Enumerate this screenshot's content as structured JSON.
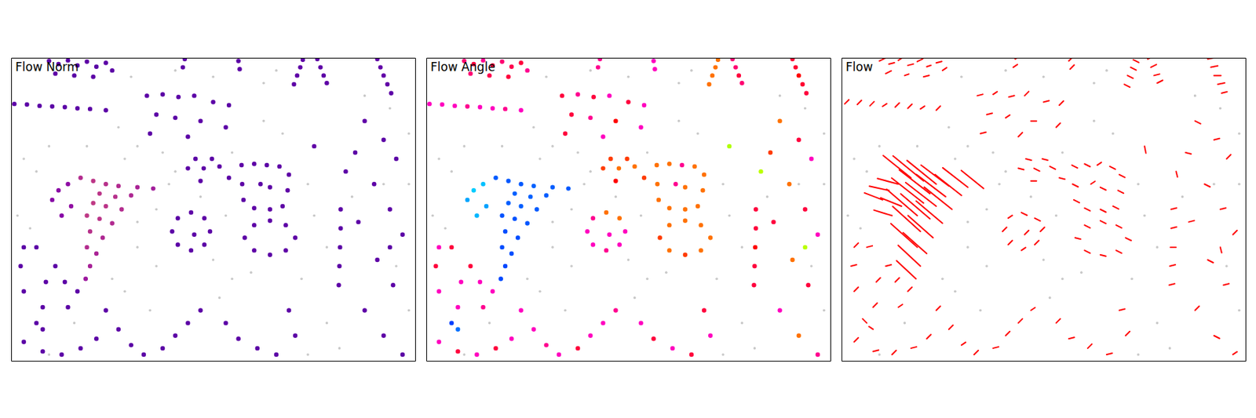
{
  "chart_data": {
    "type": "scatter",
    "titles": [
      "Flow Norm",
      "Flow Angle",
      "Flow"
    ],
    "xlim": [
      0,
      640
    ],
    "ylim": [
      480,
      0
    ],
    "tick_labels": false,
    "background": {
      "color": "#c8c8c8",
      "x": [
        200,
        240,
        180,
        400,
        430,
        470,
        480,
        500,
        460,
        350,
        330,
        230,
        200,
        250,
        300,
        340,
        20,
        40,
        10,
        30,
        160,
        180,
        560,
        600,
        630,
        630,
        610,
        630,
        500,
        520,
        260,
        320,
        400,
        420,
        190,
        170,
        120,
        60,
        230,
        320,
        380,
        470,
        100,
        220,
        60,
        590,
        540,
        350,
        260,
        200
      ],
      "values": [
        140,
        150,
        160,
        100,
        120,
        200,
        250,
        300,
        350,
        350,
        380,
        330,
        300,
        200,
        220,
        250,
        160,
        180,
        250,
        270,
        350,
        370,
        60,
        80,
        120,
        200,
        330,
        400,
        420,
        460,
        20,
        30,
        40,
        20,
        30,
        110,
        140,
        140,
        240,
        320,
        340,
        470,
        420,
        400,
        470,
        200,
        220,
        150,
        180,
        260
      ]
    },
    "flow": {
      "color": "red",
      "x": [
        110,
        130,
        150,
        170,
        200,
        225,
        140,
        165,
        190,
        130,
        150,
        175,
        120,
        140,
        160,
        125,
        145,
        120,
        135,
        125,
        118,
        90,
        75,
        65,
        95,
        80,
        60,
        75,
        90,
        105,
        120,
        135,
        150,
        160,
        70,
        100,
        130,
        580,
        585,
        590,
        596,
        602,
        485,
        490,
        495,
        500,
        462,
        458,
        453,
        448,
        360,
        362,
        275,
        272,
        5,
        25,
        45,
        65,
        85,
        105,
        125,
        150,
        280,
        292,
        305,
        318,
        330,
        345,
        300,
        365,
        385,
        405,
        425,
        440,
        438,
        430,
        410,
        385,
        368,
        366,
        395,
        410,
        215,
        240,
        265,
        290,
        320,
        345,
        230,
        260,
        300,
        340,
        220,
        280,
        315,
        306,
        285,
        264,
        255,
        264,
        285,
        306,
        290,
        450,
        435,
        410,
        385,
        370,
        385,
        410,
        435,
        20,
        15,
        20,
        50,
        90,
        70,
        85,
        55,
        40,
        105,
        150,
        170,
        190,
        210,
        240,
        260,
        280,
        300,
        522,
        522,
        521,
        520,
        519,
        560,
        590,
        610,
        575,
        600,
        620,
        580,
        605,
        560,
        590,
        620,
        545,
        550,
        480,
        600,
        530,
        340,
        360,
        390,
        420,
        450,
        440,
        20,
        50,
        80,
        110,
        135,
        40,
        50
      ],
      "values": [
        190,
        195,
        200,
        203,
        205,
        207,
        215,
        220,
        218,
        230,
        235,
        240,
        250,
        255,
        262,
        275,
        285,
        300,
        310,
        330,
        350,
        200,
        210,
        225,
        235,
        250,
        5,
        10,
        4,
        12,
        6,
        14,
        8,
        20,
        25,
        28,
        30,
        2,
        15,
        28,
        42,
        56,
        2,
        15,
        28,
        40,
        3,
        15,
        28,
        42,
        5,
        18,
        2,
        15,
        73,
        74,
        76,
        77,
        78,
        80,
        81,
        83,
        175,
        160,
        175,
        160,
        172,
        190,
        195,
        170,
        168,
        170,
        172,
        185,
        210,
        235,
        240,
        238,
        225,
        200,
        200,
        205,
        60,
        58,
        62,
        60,
        70,
        75,
        90,
        95,
        100,
        110,
        120,
        125,
        275,
        296,
        305,
        296,
        275,
        254,
        245,
        254,
        280,
        285,
        305,
        312,
        305,
        285,
        265,
        258,
        265,
        300,
        330,
        370,
        395,
        395,
        330,
        355,
        355,
        300,
        370,
        400,
        430,
        455,
        470,
        460,
        440,
        420,
        400,
        240,
        270,
        300,
        330,
        360,
        100,
        130,
        160,
        200,
        240,
        280,
        320,
        360,
        400,
        440,
        470,
        150,
        260,
        140,
        300,
        180,
        420,
        445,
        460,
        470,
        440,
        400,
        450,
        465,
        470,
        460,
        445,
        420,
        430
      ],
      "u": [
        -20,
        -22,
        -21,
        -20,
        -18,
        -16,
        -22,
        -21,
        -19,
        -23,
        -22,
        -20,
        -22,
        -21,
        -19,
        -20,
        -18,
        -19,
        -17,
        -16,
        -14,
        -15,
        -14,
        -13,
        -15,
        -13,
        4,
        4,
        3,
        4,
        4,
        3,
        4,
        3,
        4,
        3,
        4,
        5,
        5,
        5,
        5,
        4,
        4,
        4,
        4,
        4,
        4,
        4,
        4,
        4,
        3,
        3,
        3,
        3,
        3,
        3,
        3,
        3,
        3,
        3,
        3,
        3,
        4,
        4,
        4,
        4,
        4,
        4,
        4,
        4,
        4,
        3,
        4,
        4,
        4,
        4,
        4,
        4,
        4,
        4,
        3,
        4,
        4,
        3,
        4,
        3,
        4,
        3,
        4,
        3,
        4,
        3,
        4,
        3,
        3,
        3,
        3,
        3,
        3,
        3,
        4,
        4,
        3,
        4,
        4,
        4,
        4,
        4,
        4,
        4,
        4,
        3,
        4,
        3,
        3,
        3,
        4,
        3,
        3,
        4,
        3,
        3,
        3,
        3,
        3,
        4,
        3,
        3,
        3,
        4,
        4,
        4,
        4,
        4,
        4,
        4,
        3,
        4,
        4,
        3,
        4,
        4,
        3,
        4,
        3,
        4,
        4,
        1,
        1,
        1,
        3,
        4,
        3,
        4,
        3,
        4,
        3,
        4,
        3,
        4,
        3,
        -3,
        -3
      ],
      "v": [
        -16,
        -18,
        -17,
        -15,
        -14,
        -13,
        -17,
        -16,
        -15,
        -18,
        -17,
        -16,
        -19,
        -18,
        -16,
        -18,
        -16,
        -17,
        -15,
        -15,
        -13,
        -4,
        -3,
        -5,
        -6,
        -4,
        -2,
        -1,
        -2,
        -1,
        -2,
        -1,
        -1,
        -2,
        -2,
        -1,
        -1,
        -1,
        -1,
        0,
        -1,
        -1,
        -2,
        -2,
        -1,
        -2,
        2,
        2,
        2,
        2,
        -3,
        -3,
        -2,
        -2,
        -3,
        -3,
        -3,
        -2,
        -3,
        -3,
        -2,
        -3,
        1,
        1,
        2,
        1,
        2,
        1,
        0,
        2,
        2,
        -2,
        2,
        2,
        2,
        2,
        2,
        2,
        2,
        2,
        -2,
        2,
        -1,
        -2,
        -1,
        -3,
        -1,
        -3,
        -1,
        -2,
        0,
        -3,
        -1,
        -3,
        -3,
        -3,
        -2,
        -3,
        -3,
        -2,
        2,
        2,
        -3,
        2,
        2,
        1,
        2,
        1,
        2,
        2,
        2,
        -3,
        -1,
        -3,
        -3,
        -2,
        -1,
        -3,
        -3,
        -1,
        -3,
        -3,
        -3,
        -2,
        -3,
        -1,
        -3,
        -3,
        -2,
        -1,
        -1,
        0,
        -1,
        -1,
        2,
        -1,
        -3,
        2,
        -1,
        -3,
        2,
        -1,
        -3,
        2,
        -2,
        1,
        -1,
        5,
        4,
        4,
        -3,
        -1,
        -3,
        -1,
        -3,
        -1,
        -3,
        -1,
        -3,
        -1,
        -3,
        -3,
        -2
      ]
    }
  }
}
